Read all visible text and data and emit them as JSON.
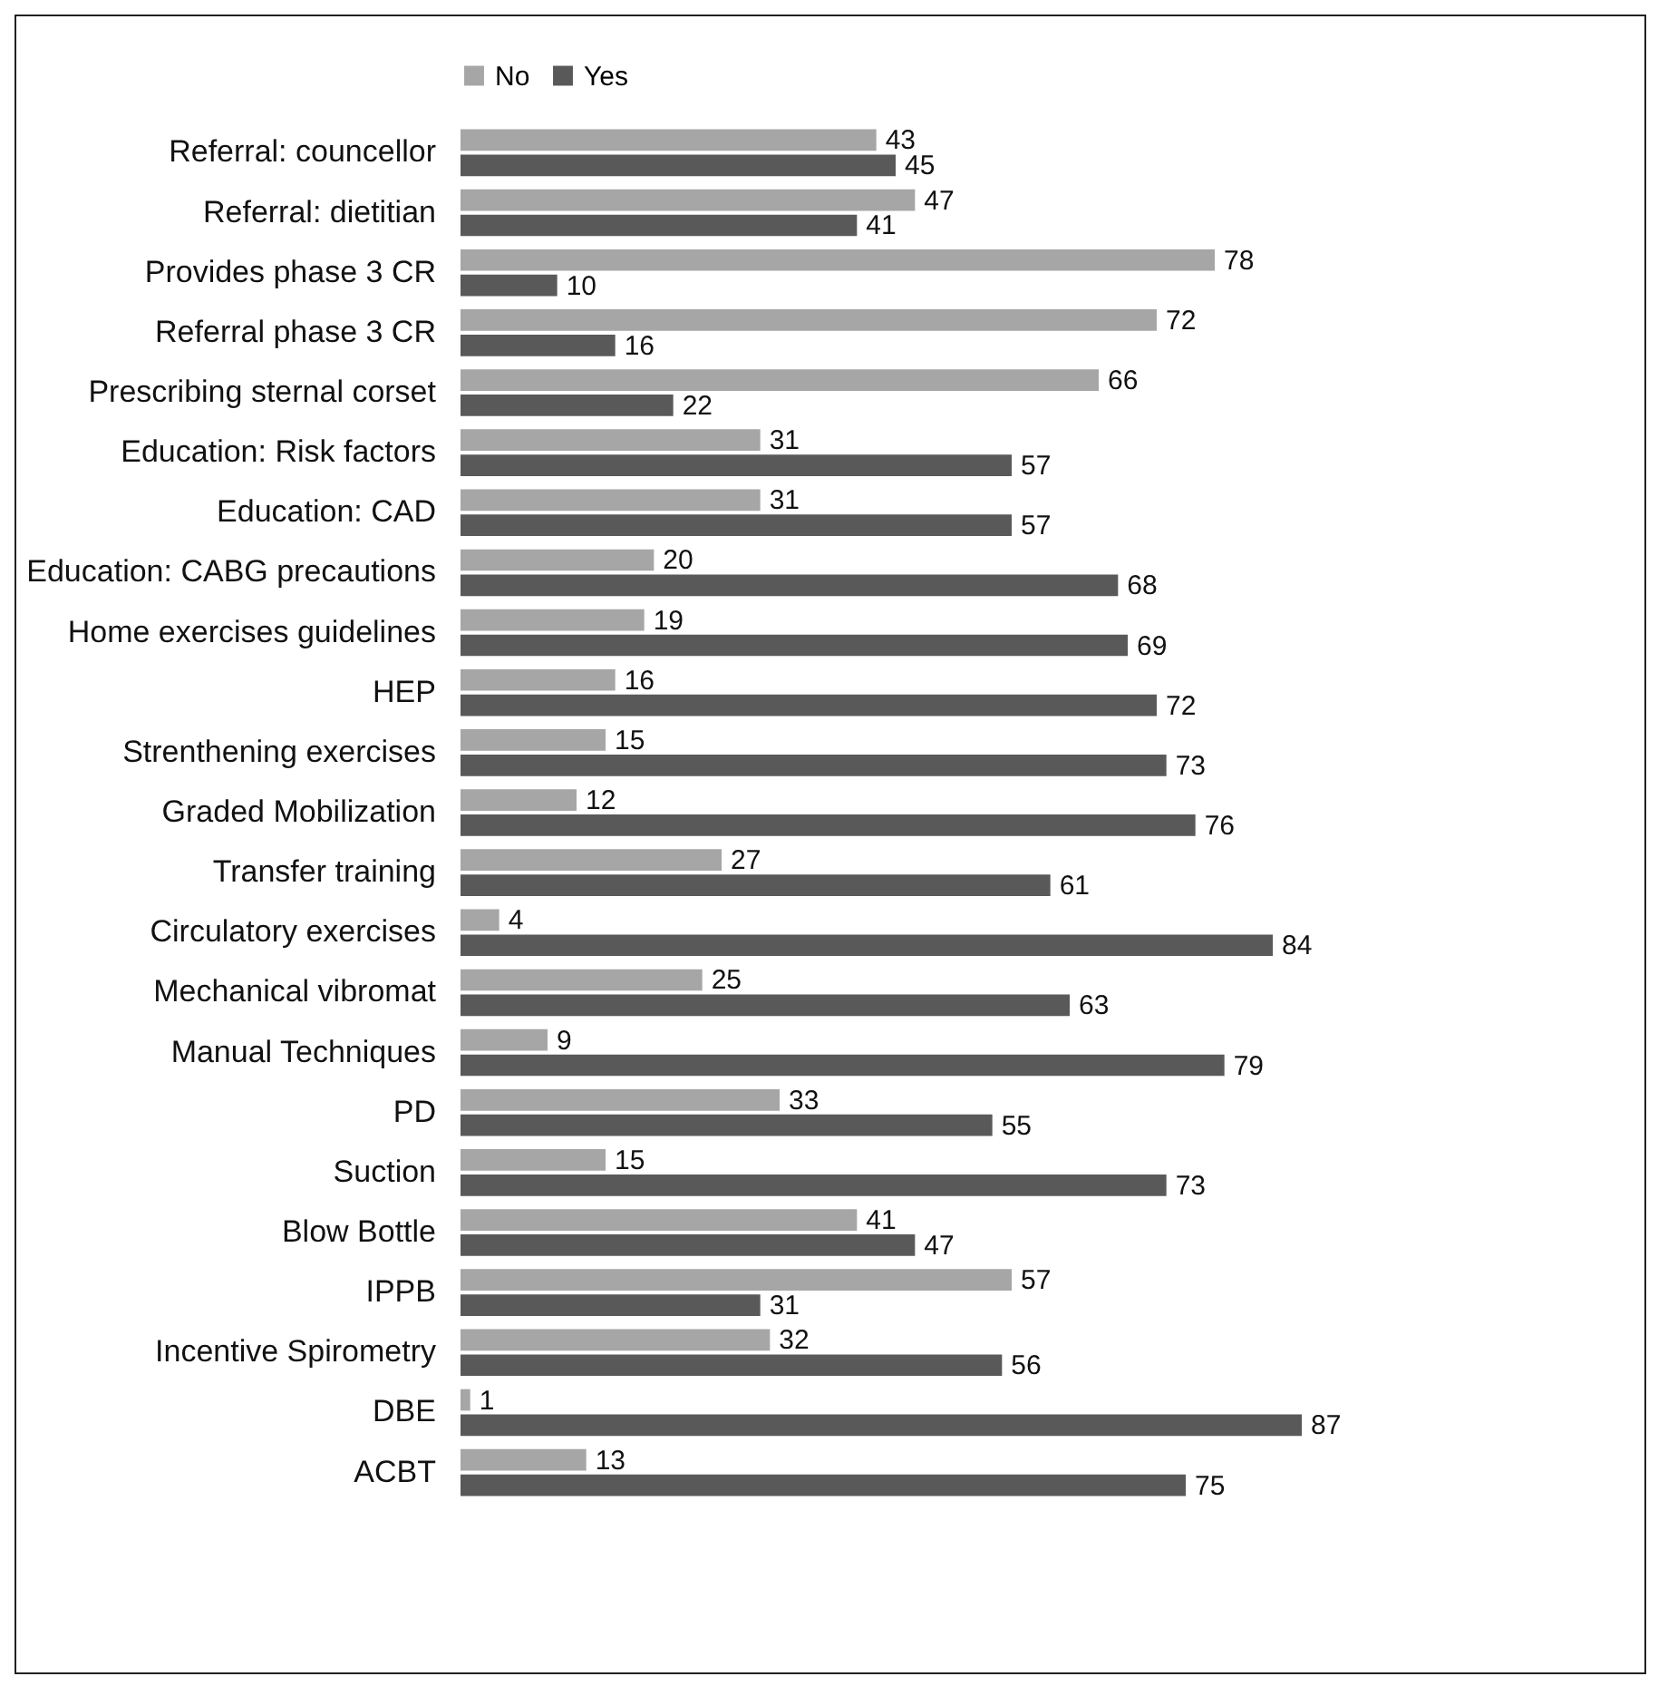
{
  "chart_data": {
    "type": "bar",
    "orientation": "horizontal",
    "data_labels": true,
    "legend": "top",
    "grid": false,
    "categories": [
      "Referral: councellor",
      "Referral: dietitian",
      "Provides phase 3 CR",
      "Referral phase 3 CR",
      "Prescribing sternal corset",
      "Education: Risk factors",
      "Education: CAD",
      "Education: CABG precautions",
      "Home exercises guidelines",
      "HEP",
      "Strenthening exercises",
      "Graded Mobilization",
      "Transfer training",
      "Circulatory exercises",
      "Mechanical vibromat",
      "Manual Techniques",
      "PD",
      "Suction",
      "Blow Bottle",
      "IPPB",
      "Incentive Spirometry",
      "DBE",
      "ACBT"
    ],
    "series": [
      {
        "name": "No",
        "color": "#a6a6a6",
        "values": [
          43,
          47,
          78,
          72,
          66,
          31,
          31,
          20,
          19,
          16,
          15,
          12,
          27,
          4,
          25,
          9,
          33,
          15,
          41,
          57,
          32,
          1,
          13
        ]
      },
      {
        "name": "Yes",
        "color": "#595959",
        "values": [
          45,
          41,
          10,
          16,
          22,
          57,
          57,
          68,
          69,
          72,
          73,
          76,
          61,
          84,
          63,
          79,
          55,
          73,
          47,
          31,
          56,
          87,
          75
        ]
      }
    ]
  }
}
